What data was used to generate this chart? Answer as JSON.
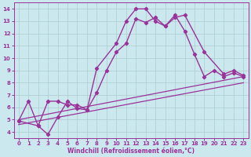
{
  "background_color": "#cce8ef",
  "line_color": "#993399",
  "xlabel": "Windchill (Refroidissement éolien,°C)",
  "xlim": [
    -0.5,
    23.5
  ],
  "ylim": [
    3.5,
    14.5
  ],
  "xticks": [
    0,
    1,
    2,
    3,
    4,
    5,
    6,
    7,
    8,
    9,
    10,
    11,
    12,
    13,
    14,
    15,
    16,
    17,
    18,
    19,
    20,
    21,
    22,
    23
  ],
  "yticks": [
    4,
    5,
    6,
    7,
    8,
    9,
    10,
    11,
    12,
    13,
    14
  ],
  "grid_color": "#aacccc",
  "series1": {
    "x": [
      0,
      1,
      2,
      3,
      4,
      5,
      6,
      7,
      8,
      10,
      11,
      12,
      13,
      14,
      15,
      16,
      17,
      19,
      21,
      22,
      23
    ],
    "y": [
      4.9,
      6.5,
      4.5,
      6.5,
      6.5,
      6.2,
      6.2,
      5.8,
      9.2,
      11.2,
      13.0,
      14.0,
      14.0,
      13.0,
      12.6,
      13.3,
      13.5,
      10.5,
      8.7,
      9.0,
      8.6
    ]
  },
  "series2": {
    "x": [
      0,
      2,
      3,
      4,
      5,
      6,
      7,
      8,
      9,
      10,
      11,
      12,
      13,
      14,
      15,
      16,
      17,
      18,
      19,
      20,
      21,
      22,
      23
    ],
    "y": [
      4.9,
      4.5,
      3.8,
      5.2,
      6.5,
      5.9,
      5.8,
      7.2,
      9.0,
      10.5,
      11.2,
      13.2,
      12.9,
      13.3,
      12.6,
      13.5,
      12.2,
      10.3,
      8.5,
      9.0,
      8.5,
      8.8,
      8.5
    ]
  },
  "line1": {
    "x": [
      0,
      23
    ],
    "y": [
      5.0,
      8.5
    ]
  },
  "line2": {
    "x": [
      0,
      23
    ],
    "y": [
      4.6,
      8.0
    ]
  }
}
